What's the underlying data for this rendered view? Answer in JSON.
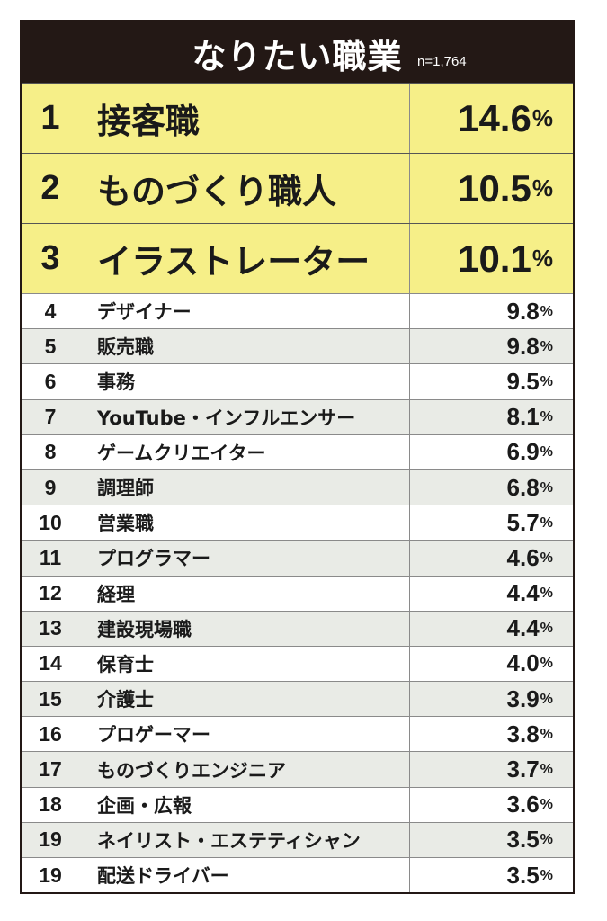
{
  "header": {
    "title": "なりたい職業",
    "sample": "n=1,764"
  },
  "colors": {
    "header_bg": "#231815",
    "top_bg": "#f6ef88",
    "stripe_bg": "#e9ebe6"
  },
  "chart_data": {
    "type": "table",
    "title": "なりたい職業",
    "columns": [
      "rank",
      "job",
      "percent"
    ],
    "unit": "%",
    "rows": [
      {
        "rank": "1",
        "job": "接客職",
        "value": "14.6"
      },
      {
        "rank": "2",
        "job": "ものづくり職人",
        "value": "10.5"
      },
      {
        "rank": "3",
        "job": "イラストレーター",
        "value": "10.1"
      },
      {
        "rank": "4",
        "job": "デザイナー",
        "value": "9.8"
      },
      {
        "rank": "5",
        "job": "販売職",
        "value": "9.8"
      },
      {
        "rank": "6",
        "job": "事務",
        "value": "9.5"
      },
      {
        "rank": "7",
        "job": "YouTube・インフルエンサー",
        "value": "8.1"
      },
      {
        "rank": "8",
        "job": "ゲームクリエイター",
        "value": "6.9"
      },
      {
        "rank": "9",
        "job": "調理師",
        "value": "6.8"
      },
      {
        "rank": "10",
        "job": "営業職",
        "value": "5.7"
      },
      {
        "rank": "11",
        "job": "プログラマー",
        "value": "4.6"
      },
      {
        "rank": "12",
        "job": "経理",
        "value": "4.4"
      },
      {
        "rank": "13",
        "job": "建設現場職",
        "value": "4.4"
      },
      {
        "rank": "14",
        "job": "保育士",
        "value": "4.0"
      },
      {
        "rank": "15",
        "job": "介護士",
        "value": "3.9"
      },
      {
        "rank": "16",
        "job": "プロゲーマー",
        "value": "3.8"
      },
      {
        "rank": "17",
        "job": "ものづくりエンジニア",
        "value": "3.7"
      },
      {
        "rank": "18",
        "job": "企画・広報",
        "value": "3.6"
      },
      {
        "rank": "19",
        "job": "ネイリスト・エステティシャン",
        "value": "3.5"
      },
      {
        "rank": "19",
        "job": "配送ドライバー",
        "value": "3.5"
      }
    ]
  }
}
